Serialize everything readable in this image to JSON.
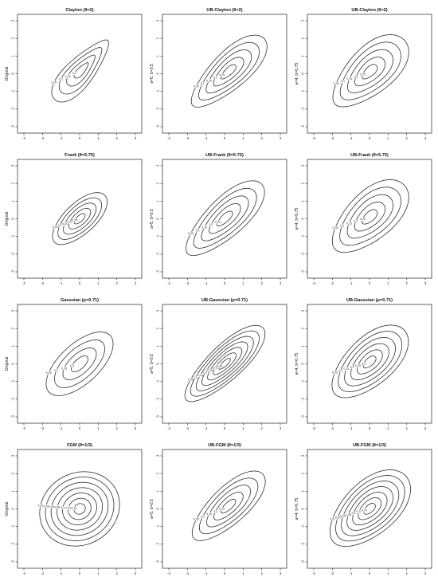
{
  "figure": {
    "col_titles": [
      [
        "Clayton (θ=2)",
        "UB-Clayton (θ=2)",
        "UB-Clayton (θ=2)"
      ],
      [
        "Frank (θ=5.75)",
        "UB-Frank (θ=5.75)",
        "UB-Frank (θ=5.75)"
      ],
      [
        "Gaussian (ρ=0.71)",
        "UB-Gaussian (ρ=0.71)",
        "UB-Gaussian (ρ=0.71)"
      ],
      [
        "FGM (θ=1/3)",
        "UB-FGM (θ=1/3)",
        "UB-FGM (θ=1/3)"
      ]
    ],
    "row_ylabels": [
      "Original",
      "a=5, b=0.5",
      "a=4, b=0.75"
    ]
  },
  "chart_data": [
    {
      "type": "contour",
      "title": "Clayton (θ=2)",
      "ylabel": "Original",
      "xlim": [
        -3,
        3
      ],
      "ylim": [
        -3,
        3
      ],
      "x_ticks": [
        "-3",
        "-2",
        "-1",
        "0",
        "1",
        "2",
        "3"
      ],
      "y_ticks": [
        "-3",
        "-2",
        "-1",
        "0",
        "1",
        "2",
        "3"
      ],
      "center": [
        0.1,
        0.2
      ],
      "angle_deg": 50,
      "axis_a": 2.2,
      "axis_b": 0.75,
      "shift": -0.35,
      "levels": [
        "0.05",
        "0.1",
        "0.15",
        "0.2"
      ]
    },
    {
      "type": "contour",
      "title": "UB-Clayton (θ=2)",
      "ylabel": "a=5, b=0.5",
      "xlim": [
        -3,
        3
      ],
      "ylim": [
        -3,
        3
      ],
      "x_ticks": [
        "-3",
        "-2",
        "-1",
        "0",
        "1",
        "2",
        "3"
      ],
      "y_ticks": [
        "-3",
        "-2",
        "-1",
        "0",
        "1",
        "2",
        "3"
      ],
      "center": [
        0.2,
        0.1
      ],
      "angle_deg": 45,
      "axis_a": 2.7,
      "axis_b": 1.0,
      "shift": 0.2,
      "levels": [
        "0.05",
        "0.1",
        "0.15",
        "0.2",
        "0.25"
      ]
    },
    {
      "type": "contour",
      "title": "UB-Clayton (θ=2)",
      "ylabel": "a=4, b=0.75",
      "xlim": [
        -3,
        3
      ],
      "ylim": [
        -3,
        3
      ],
      "x_ticks": [
        "-3",
        "-2",
        "-1",
        "0",
        "1",
        "2",
        "3"
      ],
      "y_ticks": [
        "-3",
        "-2",
        "-1",
        "0",
        "1",
        "2",
        "3"
      ],
      "center": [
        0.0,
        0.1
      ],
      "angle_deg": 45,
      "axis_a": 2.6,
      "axis_b": 1.25,
      "shift": 0.2,
      "levels": [
        "0.05",
        "0.1",
        "0.15",
        "0.2",
        "0.25"
      ]
    },
    {
      "type": "contour",
      "title": "Frank (θ=5.75)",
      "ylabel": "Original",
      "xlim": [
        -3,
        3
      ],
      "ylim": [
        -3,
        3
      ],
      "x_ticks": [
        "-3",
        "-2",
        "-1",
        "0",
        "1",
        "2",
        "3"
      ],
      "y_ticks": [
        "-3",
        "-2",
        "-1",
        "0",
        "1",
        "2",
        "3"
      ],
      "center": [
        0.0,
        0.0
      ],
      "angle_deg": 45,
      "axis_a": 1.9,
      "axis_b": 0.85,
      "shift": 0.05,
      "levels": [
        "0.05",
        "0.1",
        "0.15",
        "0.2",
        "0.25"
      ]
    },
    {
      "type": "contour",
      "title": "UB-Frank (θ=5.75)",
      "ylabel": "a=5, b=0.5",
      "xlim": [
        -3,
        3
      ],
      "ylim": [
        -3,
        3
      ],
      "x_ticks": [
        "-3",
        "-2",
        "-1",
        "0",
        "1",
        "2",
        "3"
      ],
      "y_ticks": [
        "-3",
        "-2",
        "-1",
        "0",
        "1",
        "2",
        "3"
      ],
      "center": [
        0.0,
        0.0
      ],
      "angle_deg": 45,
      "axis_a": 2.8,
      "axis_b": 1.05,
      "shift": 0.15,
      "levels": [
        "0.05",
        "0.1",
        "0.15",
        "0.2",
        "0.25"
      ]
    },
    {
      "type": "contour",
      "title": "UB-Frank (θ=5.75)",
      "ylabel": "a=4, b=0.75",
      "xlim": [
        -3,
        3
      ],
      "ylim": [
        -3,
        3
      ],
      "x_ticks": [
        "-3",
        "-2",
        "-1",
        "0",
        "1",
        "2",
        "3"
      ],
      "y_ticks": [
        "-3",
        "-2",
        "-1",
        "0",
        "1",
        "2",
        "3"
      ],
      "center": [
        0.0,
        0.1
      ],
      "angle_deg": 45,
      "axis_a": 2.6,
      "axis_b": 1.3,
      "shift": 0.15,
      "levels": [
        "0.05",
        "0.1",
        "0.15",
        "0.2",
        "0.25"
      ]
    },
    {
      "type": "contour",
      "title": "Gaussian (ρ=0.71)",
      "ylabel": "Original",
      "xlim": [
        -3,
        3
      ],
      "ylim": [
        -3,
        3
      ],
      "x_ticks": [
        "-3",
        "-2",
        "-1",
        "0",
        "1",
        "2",
        "3"
      ],
      "y_ticks": [
        "-3",
        "-2",
        "-1",
        "0",
        "1",
        "2",
        "3"
      ],
      "center": [
        0.0,
        0.0
      ],
      "angle_deg": 45,
      "axis_a": 2.3,
      "axis_b": 1.1,
      "shift": 0.0,
      "levels": [
        "0.05",
        "0.1",
        "0.15",
        "0.2"
      ]
    },
    {
      "type": "contour",
      "title": "UB-Gaussian (ρ=0.71)",
      "ylabel": "a=5, b=0.5",
      "xlim": [
        -3,
        3
      ],
      "ylim": [
        -3,
        3
      ],
      "x_ticks": [
        "-3",
        "-2",
        "-1",
        "0",
        "1",
        "2",
        "3"
      ],
      "y_ticks": [
        "-3",
        "-2",
        "-1",
        "0",
        "1",
        "2",
        "3"
      ],
      "center": [
        0.0,
        0.0
      ],
      "angle_deg": 45,
      "axis_a": 2.9,
      "axis_b": 0.95,
      "shift": 0.1,
      "levels": [
        "0.05",
        "0.1",
        "0.15",
        "0.2",
        "0.25",
        "0.3",
        "0.35"
      ]
    },
    {
      "type": "contour",
      "title": "UB-Gaussian (ρ=0.71)",
      "ylabel": "a=4, b=0.75",
      "xlim": [
        -3,
        3
      ],
      "ylim": [
        -3,
        3
      ],
      "x_ticks": [
        "-3",
        "-2",
        "-1",
        "0",
        "1",
        "2",
        "3"
      ],
      "y_ticks": [
        "-3",
        "-2",
        "-1",
        "0",
        "1",
        "2",
        "3"
      ],
      "center": [
        0.0,
        0.1
      ],
      "angle_deg": 45,
      "axis_a": 2.6,
      "axis_b": 1.3,
      "shift": 0.1,
      "levels": [
        "0.05",
        "0.1",
        "0.15",
        "0.2",
        "0.25",
        "0.3"
      ]
    },
    {
      "type": "contour",
      "title": "FGM (θ=1/3)",
      "ylabel": "Original",
      "xlim": [
        -3,
        3
      ],
      "ylim": [
        -3,
        3
      ],
      "x_ticks": [
        "-3",
        "-2",
        "-1",
        "0",
        "1",
        "2",
        "3"
      ],
      "y_ticks": [
        "-3",
        "-2",
        "-1",
        "0",
        "1",
        "2",
        "3"
      ],
      "center": [
        0.0,
        0.0
      ],
      "angle_deg": 40,
      "axis_a": 2.25,
      "axis_b": 2.0,
      "shift": 0.0,
      "levels": [
        "0.02",
        "0.04",
        "0.06",
        "0.08",
        "0.1",
        "0.12",
        "0.14"
      ]
    },
    {
      "type": "contour",
      "title": "UB-FGM (θ=1/3)",
      "ylabel": "a=5, b=0.5",
      "xlim": [
        -3,
        3
      ],
      "ylim": [
        -3,
        3
      ],
      "x_ticks": [
        "-3",
        "-2",
        "-1",
        "0",
        "1",
        "2",
        "3"
      ],
      "y_ticks": [
        "-3",
        "-2",
        "-1",
        "0",
        "1",
        "2",
        "3"
      ],
      "center": [
        0.2,
        0.15
      ],
      "angle_deg": 45,
      "axis_a": 2.6,
      "axis_b": 1.0,
      "shift": 0.1,
      "levels": [
        "0.05",
        "0.1",
        "0.15",
        "0.2",
        "0.25"
      ]
    },
    {
      "type": "contour",
      "title": "UB-FGM (θ=1/3)",
      "ylabel": "a=4, b=0.75",
      "xlim": [
        -3,
        3
      ],
      "ylim": [
        -3,
        3
      ],
      "x_ticks": [
        "-3",
        "-2",
        "-1",
        "0",
        "1",
        "2",
        "3"
      ],
      "y_ticks": [
        "-3",
        "-2",
        "-1",
        "0",
        "1",
        "2",
        "3"
      ],
      "center": [
        0.0,
        0.0
      ],
      "angle_deg": 45,
      "axis_a": 2.7,
      "axis_b": 1.45,
      "shift": 0.1,
      "levels": [
        "0.02",
        "0.04",
        "0.06",
        "0.08",
        "0.1",
        "0.12",
        "0.14"
      ]
    }
  ]
}
